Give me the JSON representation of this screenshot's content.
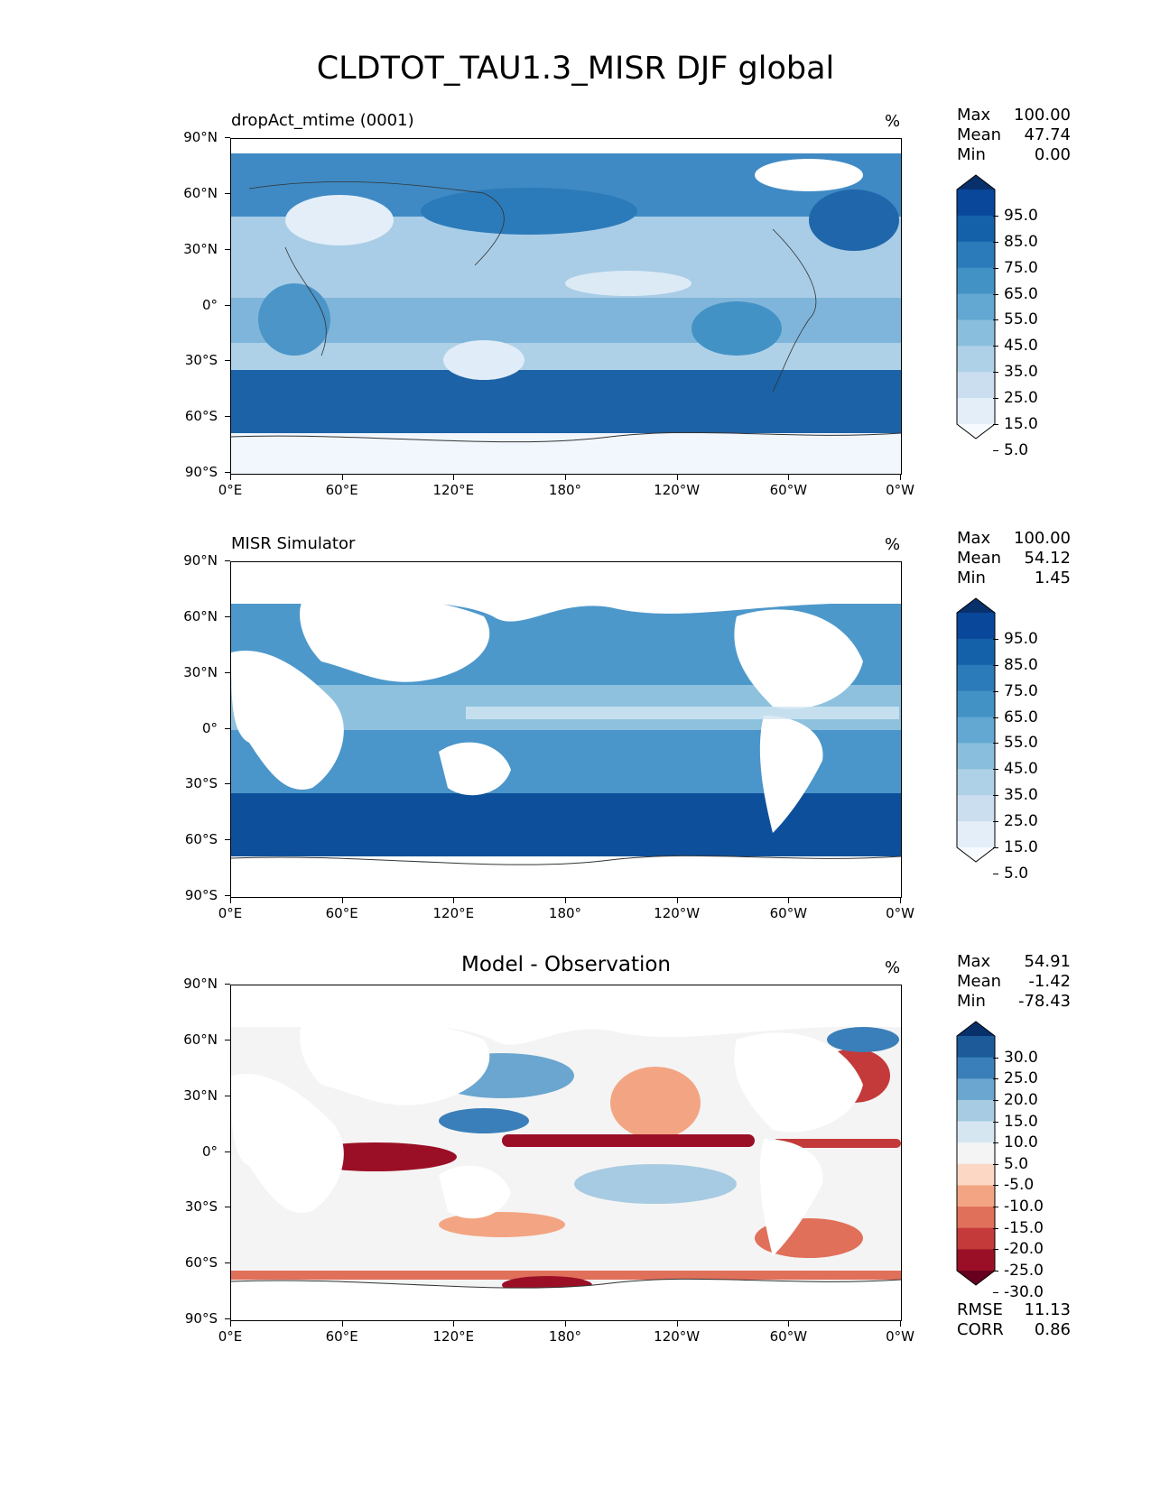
{
  "figure": {
    "title": "CLDTOT_TAU1.3_MISR DJF global",
    "lat_ticks": [
      "90°N",
      "60°N",
      "30°N",
      "0°",
      "30°S",
      "60°S",
      "90°S"
    ],
    "lon_ticks": [
      "0°E",
      "60°E",
      "120°E",
      "180°",
      "120°W",
      "60°W",
      "0°W"
    ]
  },
  "panels": [
    {
      "title": "dropAct_mtime (0001)",
      "units": "%",
      "stats": {
        "max_label": "Max",
        "max": "100.00",
        "mean_label": "Mean",
        "mean": "47.74",
        "min_label": "Min",
        "min": "0.00"
      },
      "colorbar": {
        "labels": [
          "95.0",
          "85.0",
          "75.0",
          "65.0",
          "55.0",
          "45.0",
          "35.0",
          "25.0",
          "15.0",
          "5.0"
        ],
        "colors": [
          "#08306b",
          "#08479a",
          "#1561a9",
          "#2b7bba",
          "#4292c6",
          "#62a8d2",
          "#89bedc",
          "#aed1e7",
          "#cadef0",
          "#e3eef8",
          "#f7fbff"
        ]
      }
    },
    {
      "title": "MISR Simulator",
      "units": "%",
      "stats": {
        "max_label": "Max",
        "max": "100.00",
        "mean_label": "Mean",
        "mean": "54.12",
        "min_label": "Min",
        "min": "1.45"
      },
      "colorbar": {
        "labels": [
          "95.0",
          "85.0",
          "75.0",
          "65.0",
          "55.0",
          "45.0",
          "35.0",
          "25.0",
          "15.0",
          "5.0"
        ],
        "colors": [
          "#08306b",
          "#08479a",
          "#1561a9",
          "#2b7bba",
          "#4292c6",
          "#62a8d2",
          "#89bedc",
          "#aed1e7",
          "#cadef0",
          "#e3eef8",
          "#f7fbff"
        ]
      }
    },
    {
      "title": "Model - Observation",
      "units": "%",
      "stats": {
        "max_label": "Max",
        "max": "54.91",
        "mean_label": "Mean",
        "mean": "-1.42",
        "min_label": "Min",
        "min": "-78.43"
      },
      "colorbar": {
        "labels": [
          "30.0",
          "25.0",
          "20.0",
          "15.0",
          "10.0",
          "5.0",
          "-5.0",
          "-10.0",
          "-15.0",
          "-20.0",
          "-25.0",
          "-30.0"
        ],
        "colors": [
          "#08306b",
          "#1c5a99",
          "#3a7fb9",
          "#6aa6cf",
          "#a6cbe2",
          "#d6e6f1",
          "#f4f4f4",
          "#fbd7c4",
          "#f3a583",
          "#e0705a",
          "#c43a3a",
          "#9b0f26",
          "#67001f"
        ]
      },
      "metrics": {
        "rmse_label": "RMSE",
        "rmse": "11.13",
        "corr_label": "CORR",
        "corr": "0.86"
      }
    }
  ]
}
